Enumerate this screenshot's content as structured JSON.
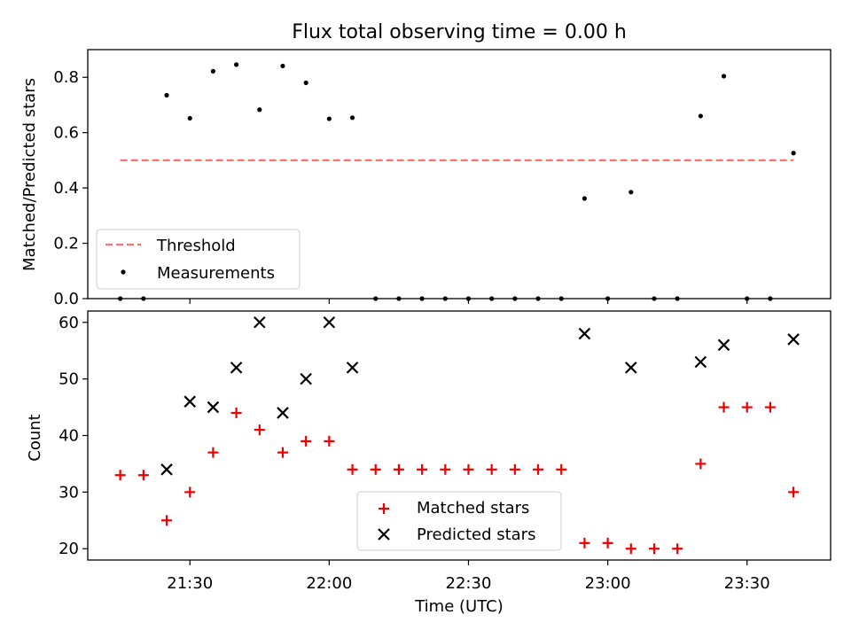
{
  "title": "Flux total observing time = 0.00 h",
  "colors": {
    "threshold": "#ff7070",
    "measurements": "#000000",
    "matched": "#ee0000",
    "predicted": "#000000"
  },
  "chart_data": [
    {
      "type": "scatter",
      "title": "Flux total observing time = 0.00 h",
      "xlabel": "",
      "ylabel": "Matched/Predicted stars",
      "xlim": [
        "21:08",
        "23:48"
      ],
      "ylim": [
        0,
        0.9
      ],
      "yticks": [
        0.0,
        0.2,
        0.4,
        0.6,
        0.8
      ],
      "yticklabels": [
        "0.0",
        "0.2",
        "0.4",
        "0.6",
        "0.8"
      ],
      "legend": {
        "placement": "lower-left",
        "entries": [
          "Threshold",
          "Measurements"
        ]
      },
      "grid": false,
      "series": [
        {
          "name": "Threshold",
          "type": "line",
          "style": "dashed",
          "x": [
            "21:15",
            "23:40"
          ],
          "y": [
            0.5,
            0.5
          ]
        },
        {
          "name": "Measurements",
          "type": "scatter",
          "marker": "dot",
          "x": [
            "21:15",
            "21:20",
            "21:25",
            "21:30",
            "21:35",
            "21:40",
            "21:45",
            "21:50",
            "21:55",
            "22:00",
            "22:05",
            "22:10",
            "22:15",
            "22:20",
            "22:25",
            "22:30",
            "22:35",
            "22:40",
            "22:45",
            "22:50",
            "22:55",
            "23:00",
            "23:05",
            "23:10",
            "23:15",
            "23:20",
            "23:25",
            "23:30",
            "23:35",
            "23:40"
          ],
          "y": [
            0.0,
            0.0,
            0.735,
            0.652,
            0.822,
            0.846,
            0.683,
            0.841,
            0.78,
            0.65,
            0.654,
            0.0,
            0.0,
            0.0,
            0.0,
            0.0,
            0.0,
            0.0,
            0.0,
            0.0,
            0.362,
            0.0,
            0.385,
            0.0,
            0.0,
            0.66,
            0.804,
            0.0,
            0.0,
            0.526
          ]
        }
      ]
    },
    {
      "type": "scatter",
      "xlabel": "Time (UTC)",
      "ylabel": "Count",
      "xlim": [
        "21:08",
        "23:48"
      ],
      "xticks": [
        "21:30",
        "22:00",
        "22:30",
        "23:00",
        "23:30"
      ],
      "ylim": [
        18,
        62
      ],
      "yticks": [
        20,
        30,
        40,
        50,
        60
      ],
      "legend": {
        "placement": "lower-center",
        "entries": [
          "Matched stars",
          "Predicted stars"
        ]
      },
      "grid": false,
      "series": [
        {
          "name": "Matched stars",
          "marker": "plus",
          "x": [
            "21:15",
            "21:20",
            "21:25",
            "21:30",
            "21:35",
            "21:40",
            "21:45",
            "21:50",
            "21:55",
            "22:00",
            "22:05",
            "22:10",
            "22:15",
            "22:20",
            "22:25",
            "22:30",
            "22:35",
            "22:40",
            "22:45",
            "22:50",
            "22:55",
            "23:00",
            "23:05",
            "23:10",
            "23:15",
            "23:20",
            "23:25",
            "23:30",
            "23:35",
            "23:40"
          ],
          "y": [
            33,
            33,
            25,
            30,
            37,
            44,
            41,
            37,
            39,
            39,
            34,
            34,
            34,
            34,
            34,
            34,
            34,
            34,
            34,
            34,
            21,
            21,
            20,
            20,
            20,
            35,
            45,
            45,
            45,
            30
          ]
        },
        {
          "name": "Predicted stars",
          "marker": "x",
          "x": [
            "21:25",
            "21:30",
            "21:35",
            "21:40",
            "21:45",
            "21:50",
            "21:55",
            "22:00",
            "22:05",
            "22:55",
            "23:05",
            "23:20",
            "23:25",
            "23:40"
          ],
          "y": [
            34,
            46,
            45,
            52,
            60,
            44,
            50,
            60,
            52,
            58,
            52,
            53,
            56,
            57
          ]
        }
      ]
    }
  ]
}
